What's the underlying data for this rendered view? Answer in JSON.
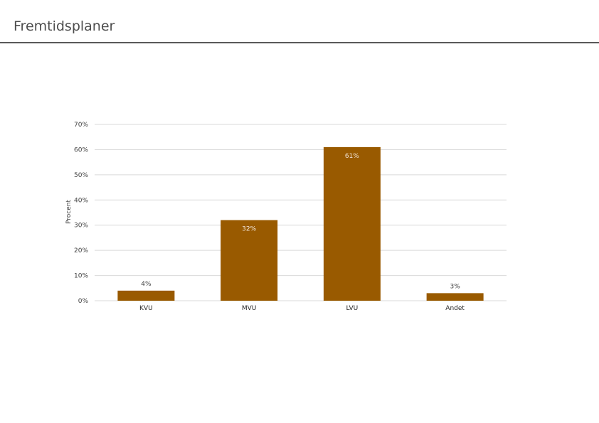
{
  "page": {
    "title": "Fremtidsplaner"
  },
  "chart_data": {
    "type": "bar",
    "title": "",
    "xlabel": "",
    "ylabel": "Procent",
    "categories": [
      "KVU",
      "MVU",
      "LVU",
      "Andet"
    ],
    "values": [
      4,
      32,
      61,
      3
    ],
    "value_labels": [
      "4%",
      "32%",
      "61%",
      "3%"
    ],
    "ylim": [
      0,
      70
    ],
    "yticks": [
      0,
      10,
      20,
      30,
      40,
      50,
      60,
      70
    ],
    "ytick_labels": [
      "0%",
      "10%",
      "20%",
      "30%",
      "40%",
      "50%",
      "60%",
      "70%"
    ],
    "grid": true,
    "legend": "none",
    "colors": {
      "bar": "#995a00",
      "grid": "#d9d9d9",
      "label_inside": "#f2e6d9",
      "label_outside": "#404040"
    }
  }
}
